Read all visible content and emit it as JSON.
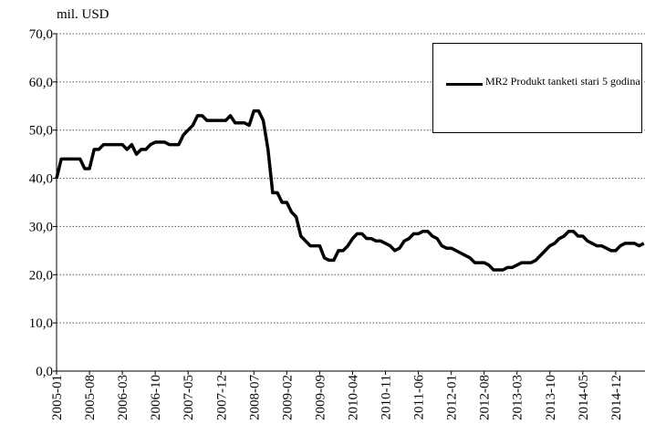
{
  "chart_data": {
    "type": "line",
    "y_label": "mil. USD",
    "categories": [
      "2005-01",
      null,
      null,
      null,
      null,
      null,
      null,
      "2005-08",
      null,
      null,
      null,
      null,
      null,
      null,
      "2006-03",
      null,
      null,
      null,
      null,
      null,
      null,
      "2006-10",
      null,
      null,
      null,
      null,
      null,
      null,
      "2007-05",
      null,
      null,
      null,
      null,
      null,
      null,
      "2007-12",
      null,
      null,
      null,
      null,
      null,
      null,
      "2008-07",
      null,
      null,
      null,
      null,
      null,
      null,
      "2009-02",
      null,
      null,
      null,
      null,
      null,
      null,
      "2009-09",
      null,
      null,
      null,
      null,
      null,
      null,
      "2010-04",
      null,
      null,
      null,
      null,
      null,
      null,
      "2010-11",
      null,
      null,
      null,
      null,
      null,
      null,
      "2011-06",
      null,
      null,
      null,
      null,
      null,
      null,
      "2012-01",
      null,
      null,
      null,
      null,
      null,
      null,
      "2012-08",
      null,
      null,
      null,
      null,
      null,
      null,
      "2013-03",
      null,
      null,
      null,
      null,
      null,
      null,
      "2013-10",
      null,
      null,
      null,
      null,
      null,
      null,
      "2014-05",
      null,
      null,
      null,
      null,
      null,
      null,
      "2014-12",
      null,
      null,
      null,
      null,
      null,
      null
    ],
    "series": [
      {
        "name": "MR2 Produkt tanketi stari 5 godina",
        "color": "#000000",
        "values": [
          40,
          44,
          44,
          44,
          44,
          44,
          42,
          42,
          46,
          46,
          47,
          47,
          47,
          47,
          47,
          46,
          47,
          45,
          46,
          46,
          47,
          47.5,
          47.5,
          47.5,
          47,
          47,
          47,
          49,
          50,
          51,
          53,
          53,
          52,
          52,
          52,
          52,
          52,
          53,
          51.5,
          51.5,
          51.5,
          51,
          54,
          54,
          52,
          46,
          37,
          37,
          35,
          35,
          33,
          32,
          28,
          27,
          26,
          26,
          26,
          23.5,
          23,
          23,
          25,
          25,
          26,
          27.5,
          28.5,
          28.5,
          27.5,
          27.5,
          27,
          27,
          26.5,
          26,
          25,
          25.5,
          27,
          27.5,
          28.5,
          28.5,
          29,
          29,
          28,
          27.5,
          26,
          25.5,
          25.5,
          25,
          24.5,
          24,
          23.5,
          22.5,
          22.5,
          22.5,
          22,
          21,
          21,
          21,
          21.5,
          21.5,
          22,
          22.5,
          22.5,
          22.5,
          23,
          24,
          25,
          26,
          26.5,
          27.5,
          28,
          29,
          29,
          28,
          28,
          27,
          26.5,
          26,
          26,
          25.5,
          25,
          25,
          26,
          26.5,
          26.5,
          26.5,
          26,
          26.5
        ]
      }
    ],
    "ylim": [
      0,
      70
    ],
    "yticks": [
      {
        "value": 0,
        "label": "0,0"
      },
      {
        "value": 10,
        "label": "10,0"
      },
      {
        "value": 20,
        "label": "20,0"
      },
      {
        "value": 30,
        "label": "30,0"
      },
      {
        "value": 40,
        "label": "40,0"
      },
      {
        "value": 50,
        "label": "50,0"
      },
      {
        "value": 60,
        "label": "60,0"
      },
      {
        "value": 70,
        "label": "70,0"
      }
    ],
    "grid": true
  }
}
